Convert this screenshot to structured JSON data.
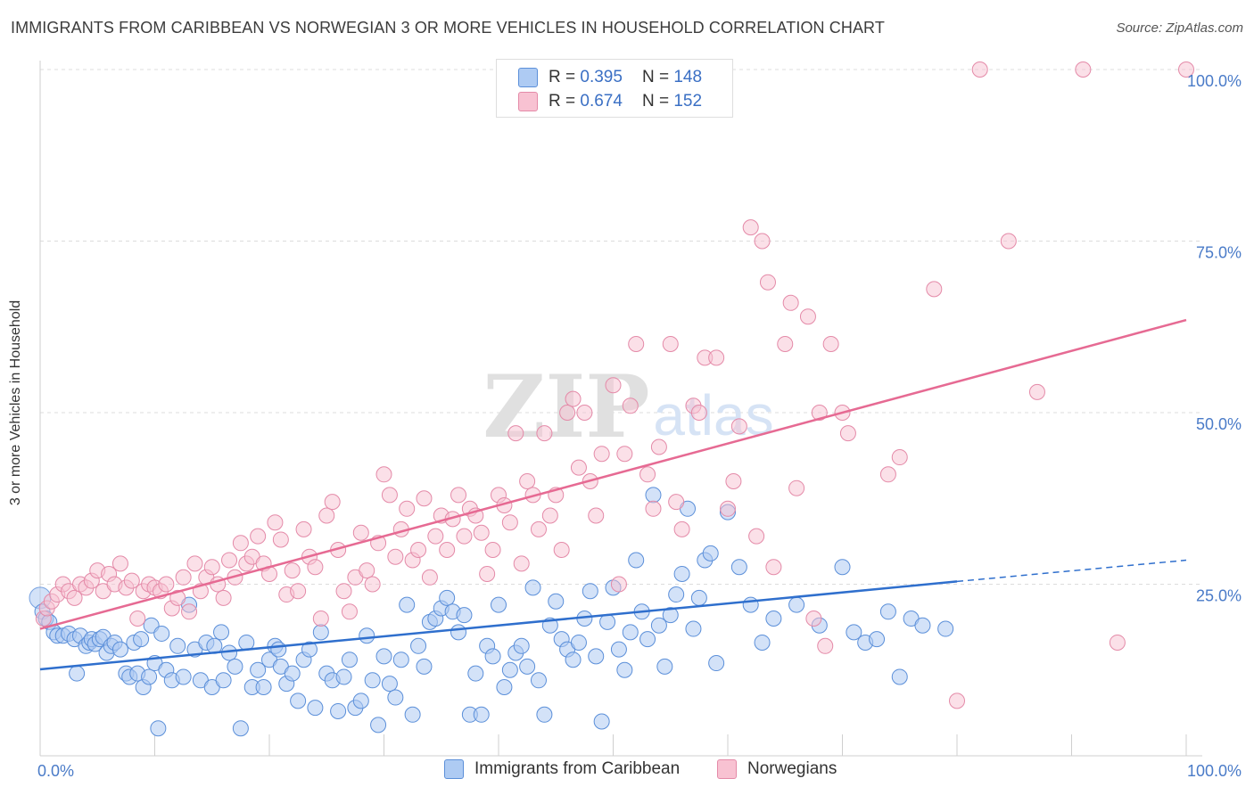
{
  "title": "IMMIGRANTS FROM CARIBBEAN VS NORWEGIAN 3 OR MORE VEHICLES IN HOUSEHOLD CORRELATION CHART",
  "source": "Source: ZipAtlas.com",
  "legend_top": {
    "r_label": "R =",
    "n_label": "N =",
    "rows": [
      {
        "r": "0.395",
        "n": "148"
      },
      {
        "r": "0.674",
        "n": "152"
      }
    ]
  },
  "watermark": {
    "zip": "ZIP",
    "atlas": "atlas"
  },
  "colors": {
    "blue_fill": "#aecbf3",
    "blue_stroke": "#5b8fd9",
    "blue_line": "#2f6fcd",
    "pink_fill": "#f8c2d2",
    "pink_stroke": "#e48aa8",
    "pink_line": "#e66a93",
    "tick_color": "#4a7bc8"
  },
  "chart_data": {
    "type": "scatter",
    "title": "IMMIGRANTS FROM CARIBBEAN VS NORWEGIAN 3 OR MORE VEHICLES IN HOUSEHOLD CORRELATION CHART",
    "xlabel": "",
    "ylabel": "3 or more Vehicles in Household",
    "xlim": [
      0,
      100
    ],
    "ylim": [
      0,
      100
    ],
    "x_tick_labels": [
      "0.0%",
      "100.0%"
    ],
    "y_tick_labels": [
      "25.0%",
      "50.0%",
      "75.0%",
      "100.0%"
    ],
    "y_ticks": [
      25,
      50,
      75,
      100
    ],
    "grid": true,
    "legend_placement": "bottom-center",
    "series": [
      {
        "name": "Immigrants from Caribbean",
        "color": "#5b8fd9",
        "trend": {
          "x0": 0,
          "y0": 12.6,
          "x1": 80,
          "y1": 25.4,
          "dashed_to_x": 100,
          "dashed_to_y": 28.5
        },
        "points": [
          [
            0.2,
            21
          ],
          [
            0.5,
            20
          ],
          [
            0.8,
            19.5
          ],
          [
            1.2,
            18
          ],
          [
            1.5,
            17.5
          ],
          [
            2,
            17.5
          ],
          [
            2.5,
            17.8
          ],
          [
            3,
            17
          ],
          [
            3.2,
            12
          ],
          [
            3.5,
            17.5
          ],
          [
            4,
            16
          ],
          [
            4.3,
            16.5
          ],
          [
            4.5,
            17
          ],
          [
            4.8,
            16.3
          ],
          [
            5.2,
            17
          ],
          [
            5.5,
            17.3
          ],
          [
            5.8,
            15
          ],
          [
            6.2,
            16
          ],
          [
            6.5,
            16.5
          ],
          [
            7,
            15.5
          ],
          [
            7.5,
            12
          ],
          [
            7.8,
            11.5
          ],
          [
            8.2,
            16.5
          ],
          [
            8.5,
            12
          ],
          [
            8.8,
            17
          ],
          [
            9,
            10
          ],
          [
            9.5,
            11.5
          ],
          [
            9.7,
            19
          ],
          [
            10,
            13.5
          ],
          [
            10.3,
            4
          ],
          [
            10.6,
            17.8
          ],
          [
            11,
            12.5
          ],
          [
            11.5,
            11
          ],
          [
            12,
            16
          ],
          [
            12.5,
            11.5
          ],
          [
            13,
            22
          ],
          [
            13.5,
            15.5
          ],
          [
            14,
            11
          ],
          [
            14.5,
            16.5
          ],
          [
            15,
            10
          ],
          [
            15.2,
            16
          ],
          [
            15.8,
            18
          ],
          [
            16,
            11
          ],
          [
            16.5,
            15
          ],
          [
            17,
            13
          ],
          [
            17.5,
            4
          ],
          [
            18,
            16.5
          ],
          [
            18.5,
            10
          ],
          [
            19,
            12.5
          ],
          [
            19.5,
            10
          ],
          [
            20,
            14
          ],
          [
            20.5,
            16
          ],
          [
            20.8,
            15.5
          ],
          [
            21,
            13
          ],
          [
            21.5,
            10.5
          ],
          [
            22,
            12
          ],
          [
            22.5,
            8
          ],
          [
            23,
            14
          ],
          [
            23.5,
            15.5
          ],
          [
            24,
            7
          ],
          [
            24.5,
            18
          ],
          [
            25,
            12
          ],
          [
            25.5,
            11
          ],
          [
            26,
            6.5
          ],
          [
            26.5,
            11.5
          ],
          [
            27,
            14
          ],
          [
            27.5,
            7
          ],
          [
            28,
            8
          ],
          [
            28.5,
            17.5
          ],
          [
            29,
            11
          ],
          [
            29.5,
            4.5
          ],
          [
            30,
            14.5
          ],
          [
            30.5,
            10.5
          ],
          [
            31,
            8.5
          ],
          [
            31.5,
            14
          ],
          [
            32,
            22
          ],
          [
            32.5,
            6
          ],
          [
            33,
            16
          ],
          [
            33.5,
            13
          ],
          [
            34,
            19.5
          ],
          [
            34.5,
            20
          ],
          [
            35,
            21.5
          ],
          [
            35.5,
            23
          ],
          [
            36,
            21
          ],
          [
            36.5,
            18
          ],
          [
            37,
            20.5
          ],
          [
            37.5,
            6
          ],
          [
            38,
            12
          ],
          [
            38.5,
            6
          ],
          [
            39,
            16
          ],
          [
            39.5,
            14.5
          ],
          [
            40,
            22
          ],
          [
            40.5,
            10
          ],
          [
            41,
            12.5
          ],
          [
            41.5,
            15
          ],
          [
            42,
            16
          ],
          [
            42.5,
            13
          ],
          [
            43,
            24.5
          ],
          [
            43.5,
            11
          ],
          [
            44,
            6
          ],
          [
            44.5,
            19
          ],
          [
            45,
            22.5
          ],
          [
            45.5,
            17
          ],
          [
            46,
            15.5
          ],
          [
            46.5,
            14
          ],
          [
            47,
            16.5
          ],
          [
            47.5,
            20
          ],
          [
            48,
            24
          ],
          [
            48.5,
            14.5
          ],
          [
            49,
            5
          ],
          [
            49.5,
            19.5
          ],
          [
            50,
            24.5
          ],
          [
            50.5,
            15.5
          ],
          [
            51,
            12.5
          ],
          [
            51.5,
            18
          ],
          [
            52,
            28.5
          ],
          [
            52.5,
            21
          ],
          [
            53,
            17
          ],
          [
            53.5,
            38
          ],
          [
            54,
            19
          ],
          [
            54.5,
            13
          ],
          [
            55,
            20.5
          ],
          [
            55.5,
            23.5
          ],
          [
            56,
            26.5
          ],
          [
            56.5,
            36
          ],
          [
            57,
            18.5
          ],
          [
            57.5,
            23
          ],
          [
            58,
            28.5
          ],
          [
            58.5,
            29.5
          ],
          [
            59,
            13.5
          ],
          [
            60,
            35.5
          ],
          [
            61,
            27.5
          ],
          [
            62,
            22
          ],
          [
            63,
            16.5
          ],
          [
            64,
            20
          ],
          [
            66,
            22
          ],
          [
            68,
            19
          ],
          [
            70,
            27.5
          ],
          [
            71,
            18
          ],
          [
            72,
            16.5
          ],
          [
            73,
            17
          ],
          [
            74,
            21
          ],
          [
            75,
            11.5
          ],
          [
            76,
            20
          ],
          [
            77,
            19
          ],
          [
            79,
            18.5
          ]
        ]
      },
      {
        "name": "Norwegians",
        "color": "#e48aa8",
        "trend": {
          "x0": 0,
          "y0": 18.5,
          "x1": 100,
          "y1": 63.5
        },
        "points": [
          [
            0.3,
            20
          ],
          [
            0.6,
            21.5
          ],
          [
            1,
            22.5
          ],
          [
            1.5,
            23.5
          ],
          [
            2,
            25
          ],
          [
            2.5,
            24
          ],
          [
            3,
            23
          ],
          [
            3.5,
            25
          ],
          [
            4,
            24.5
          ],
          [
            4.5,
            25.5
          ],
          [
            5,
            27
          ],
          [
            5.5,
            24
          ],
          [
            6,
            26.5
          ],
          [
            6.5,
            25
          ],
          [
            7,
            28
          ],
          [
            7.5,
            24.5
          ],
          [
            8,
            25.5
          ],
          [
            8.5,
            20
          ],
          [
            9,
            24
          ],
          [
            9.5,
            25
          ],
          [
            10,
            24.5
          ],
          [
            10.5,
            24
          ],
          [
            11,
            25
          ],
          [
            11.5,
            21.5
          ],
          [
            12,
            23
          ],
          [
            12.5,
            26
          ],
          [
            13,
            21
          ],
          [
            13.5,
            28
          ],
          [
            14,
            24
          ],
          [
            14.5,
            26
          ],
          [
            15,
            27.5
          ],
          [
            15.5,
            25
          ],
          [
            16,
            23
          ],
          [
            16.5,
            28.5
          ],
          [
            17,
            26
          ],
          [
            17.5,
            31
          ],
          [
            18,
            28
          ],
          [
            18.5,
            29
          ],
          [
            19,
            32
          ],
          [
            19.5,
            28
          ],
          [
            20,
            26.5
          ],
          [
            20.5,
            34
          ],
          [
            21,
            31.5
          ],
          [
            21.5,
            23.5
          ],
          [
            22,
            27
          ],
          [
            22.5,
            24
          ],
          [
            23,
            33
          ],
          [
            23.5,
            29
          ],
          [
            24,
            27.5
          ],
          [
            24.5,
            20
          ],
          [
            25,
            35
          ],
          [
            25.5,
            37
          ],
          [
            26,
            30
          ],
          [
            26.5,
            24
          ],
          [
            27,
            21
          ],
          [
            27.5,
            26
          ],
          [
            28,
            32.5
          ],
          [
            28.5,
            27
          ],
          [
            29,
            25
          ],
          [
            29.5,
            31
          ],
          [
            30,
            41
          ],
          [
            30.5,
            38
          ],
          [
            31,
            29
          ],
          [
            31.5,
            33
          ],
          [
            32,
            36
          ],
          [
            32.5,
            28.5
          ],
          [
            33,
            30
          ],
          [
            33.5,
            37.5
          ],
          [
            34,
            26
          ],
          [
            34.5,
            32
          ],
          [
            35,
            35
          ],
          [
            35.5,
            30
          ],
          [
            36,
            34.5
          ],
          [
            36.5,
            38
          ],
          [
            37,
            32
          ],
          [
            37.5,
            36
          ],
          [
            38,
            35
          ],
          [
            38.5,
            32.5
          ],
          [
            39,
            26.5
          ],
          [
            39.5,
            30
          ],
          [
            40,
            38
          ],
          [
            40.5,
            36.5
          ],
          [
            41,
            34
          ],
          [
            41.5,
            47
          ],
          [
            42,
            28
          ],
          [
            42.5,
            40
          ],
          [
            43,
            38
          ],
          [
            43.5,
            33
          ],
          [
            44,
            47
          ],
          [
            44.5,
            35
          ],
          [
            45,
            38
          ],
          [
            45.5,
            30
          ],
          [
            46,
            50
          ],
          [
            46.5,
            52
          ],
          [
            47,
            42
          ],
          [
            47.5,
            50
          ],
          [
            48,
            40
          ],
          [
            48.5,
            35
          ],
          [
            49,
            44
          ],
          [
            50,
            54
          ],
          [
            50.5,
            25
          ],
          [
            51,
            44
          ],
          [
            51.5,
            51
          ],
          [
            52,
            60
          ],
          [
            53,
            41
          ],
          [
            53.5,
            36
          ],
          [
            54,
            45
          ],
          [
            55,
            60
          ],
          [
            55.5,
            37
          ],
          [
            56,
            33
          ],
          [
            57,
            51
          ],
          [
            57.5,
            50
          ],
          [
            58,
            58
          ],
          [
            59,
            58
          ],
          [
            60,
            36
          ],
          [
            60.5,
            40
          ],
          [
            61,
            48
          ],
          [
            62,
            77
          ],
          [
            62.5,
            32
          ],
          [
            63,
            75
          ],
          [
            63.5,
            69
          ],
          [
            64,
            27.5
          ],
          [
            65,
            60
          ],
          [
            65.5,
            66
          ],
          [
            66,
            39
          ],
          [
            67,
            64
          ],
          [
            67.5,
            20
          ],
          [
            68,
            50
          ],
          [
            68.5,
            16
          ],
          [
            69,
            60
          ],
          [
            70,
            50
          ],
          [
            70.5,
            47
          ],
          [
            74,
            41
          ],
          [
            75,
            43.5
          ],
          [
            78,
            68
          ],
          [
            80,
            8
          ],
          [
            82,
            100
          ],
          [
            84.5,
            75
          ],
          [
            87,
            53
          ],
          [
            91,
            100
          ],
          [
            94,
            16.5
          ],
          [
            100,
            100
          ]
        ]
      }
    ]
  },
  "legend_bottom": {
    "items": [
      "Immigrants from Caribbean",
      "Norwegians"
    ]
  }
}
